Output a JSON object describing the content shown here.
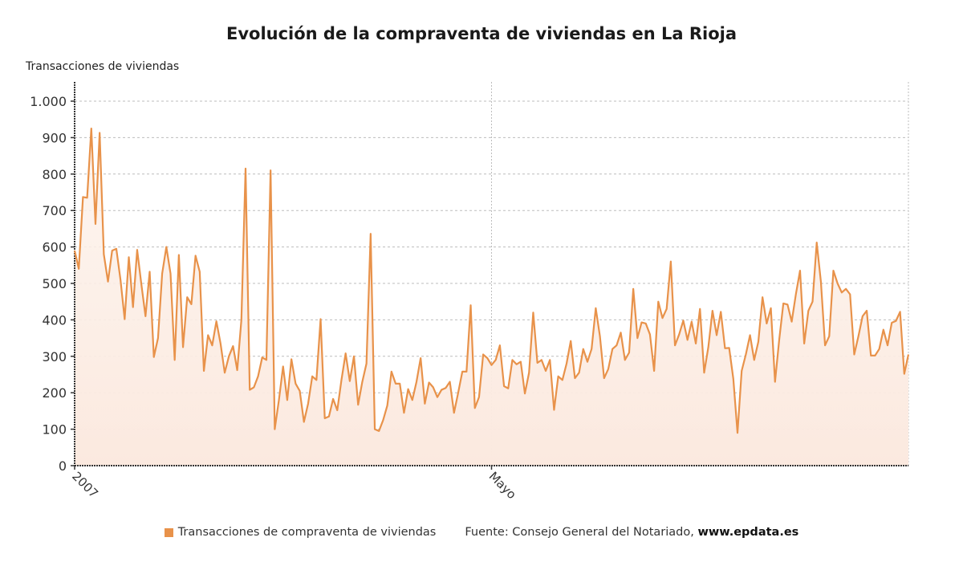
{
  "chart_data": {
    "type": "area",
    "title": "Evolución de la compraventa de viviendas en La Rioja",
    "ylabel": "Transacciones de viviendas",
    "xlabel": "",
    "ylim": [
      0,
      1050
    ],
    "yticks": [
      0,
      100,
      200,
      300,
      400,
      500,
      600,
      700,
      800,
      900,
      1000
    ],
    "ytick_labels": [
      "0",
      "100",
      "200",
      "300",
      "400",
      "500",
      "600",
      "700",
      "800",
      "900",
      "1.000"
    ],
    "xtick_labels": [
      {
        "label": "2007",
        "index": 0
      },
      {
        "label": "Mayo",
        "index": 100
      }
    ],
    "grid": true,
    "legend_position": "bottom",
    "color": "#e8924a",
    "fill_color": "#fcefe6",
    "series": [
      {
        "name": "Transacciones de compraventa de viviendas",
        "values": [
          590,
          540,
          737,
          735,
          925,
          663,
          913,
          580,
          505,
          590,
          595,
          510,
          402,
          572,
          435,
          592,
          498,
          410,
          532,
          298,
          350,
          527,
          600,
          527,
          290,
          578,
          325,
          462,
          443,
          576,
          532,
          260,
          358,
          330,
          396,
          335,
          255,
          300,
          328,
          262,
          400,
          815,
          208,
          215,
          245,
          297,
          290,
          810,
          100,
          180,
          272,
          180,
          292,
          225,
          205,
          120,
          170,
          245,
          235,
          402,
          130,
          135,
          183,
          152,
          235,
          308,
          232,
          300,
          167,
          230,
          280,
          636,
          100,
          95,
          125,
          165,
          258,
          225,
          225,
          145,
          210,
          180,
          230,
          295,
          170,
          228,
          215,
          188,
          208,
          213,
          230,
          145,
          200,
          258,
          258,
          440,
          158,
          188,
          305,
          295,
          276,
          290,
          330,
          218,
          212,
          290,
          278,
          285,
          198,
          255,
          420,
          282,
          290,
          260,
          290,
          153,
          245,
          235,
          280,
          342,
          240,
          255,
          320,
          285,
          320,
          432,
          355,
          240,
          265,
          320,
          330,
          365,
          290,
          310,
          485,
          350,
          393,
          390,
          360,
          260,
          450,
          405,
          430,
          560,
          330,
          360,
          398,
          345,
          395,
          335,
          430,
          255,
          325,
          425,
          358,
          422,
          322,
          323,
          238,
          90,
          260,
          305,
          358,
          290,
          340,
          462,
          390,
          432,
          230,
          345,
          445,
          442,
          395,
          470,
          535,
          335,
          425,
          450,
          612,
          505,
          330,
          355,
          535,
          500,
          475,
          485,
          470,
          305,
          355,
          410,
          425,
          302,
          302,
          320,
          373,
          330,
          392,
          397,
          422,
          252,
          305
        ]
      }
    ],
    "legend": {
      "series_label": "Transacciones de compraventa de viviendas",
      "source_prefix": "Fuente: Consejo General del Notariado, ",
      "source_site": "www.epdata.es"
    }
  }
}
